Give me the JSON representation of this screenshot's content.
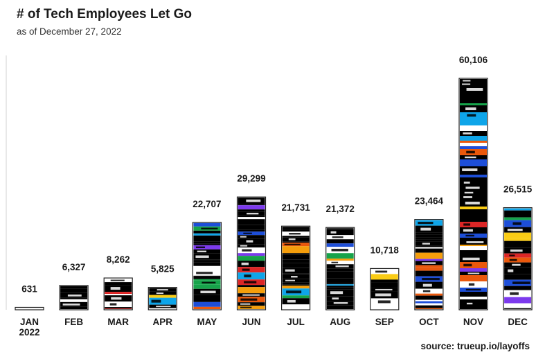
{
  "chart_data": {
    "type": "bar",
    "title": "# of Tech Employees Let Go",
    "subtitle": "as of December 27, 2022",
    "source": "source: trueup.io/layoffs",
    "categories": [
      "JAN",
      "FEB",
      "MAR",
      "APR",
      "MAY",
      "JUN",
      "JUL",
      "AUG",
      "SEP",
      "OCT",
      "NOV",
      "DEC"
    ],
    "first_category_sublabel": "2022",
    "values": [
      631,
      6327,
      8262,
      5825,
      22707,
      29299,
      21731,
      21372,
      10718,
      23464,
      60106,
      26515
    ],
    "value_labels": [
      "631",
      "6,327",
      "8,262",
      "5,825",
      "22,707",
      "29,299",
      "21,731",
      "21,372",
      "10,718",
      "23,464",
      "60,106",
      "26,515"
    ],
    "ylim": [
      0,
      60106
    ],
    "grid": false,
    "legend": "none",
    "bar_style": "collage of company logos inside each bar",
    "colors": {
      "bar_outline": "#222222",
      "text": "#1a1a1a",
      "logo_palette": [
        "#000000",
        "#ffffff",
        "#1d4ed8",
        "#7c3aed",
        "#dc2626",
        "#16a34a",
        "#f59e0b",
        "#0ea5e9",
        "#ea580c",
        "#facc15"
      ]
    }
  }
}
